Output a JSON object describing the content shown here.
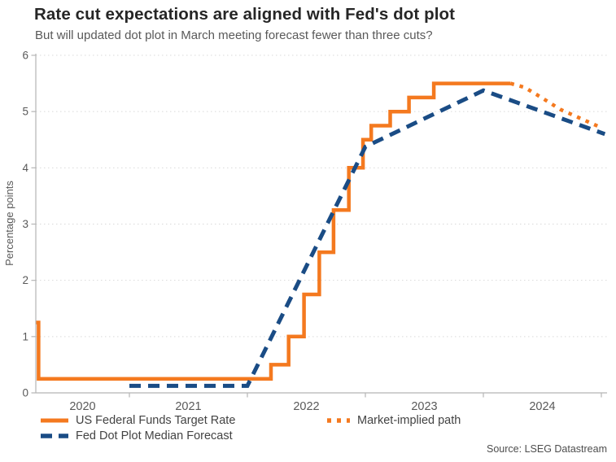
{
  "header": {
    "title": "Rate cut expectations are aligned with Fed's dot plot",
    "subtitle": "But will updated dot plot in March meeting forecast fewer than three cuts?"
  },
  "source_label": "Source: LSEG Datastream",
  "colors": {
    "orange": "#F4791F",
    "blue": "#1A4C85",
    "axis": "#b5b5b5",
    "grid": "#d9d9d9",
    "tick_text": "#595959",
    "legend_text": "#434343"
  },
  "chart_data": {
    "type": "line",
    "title": "Rate cut expectations are aligned with Fed's dot plot",
    "subtitle": "But will updated dot plot in March meeting forecast fewer than three cuts?",
    "xlabel": "",
    "ylabel": "Percentage points",
    "ylim": [
      0,
      6
    ],
    "yticks": [
      0,
      1,
      2,
      3,
      4,
      5,
      6
    ],
    "x_year_labels": [
      "2020",
      "2021",
      "2022",
      "2023",
      "2024"
    ],
    "x_tick_years": [
      2021,
      2022,
      2023,
      2024,
      2025
    ],
    "xlim": [
      2020.2,
      2025.05
    ],
    "grid": "horizontal dotted gridlines at each integer, no vertical grid",
    "legend_position": "bottom-left, two columns",
    "series": [
      {
        "name": "US Federal Funds Target Rate",
        "type": "step-post",
        "style": "solid",
        "color": "#F4791F",
        "points": [
          [
            2020.21,
            1.25
          ],
          [
            2020.23,
            0.25
          ],
          [
            2022.2,
            0.5
          ],
          [
            2022.35,
            1.0
          ],
          [
            2022.48,
            1.75
          ],
          [
            2022.61,
            2.5
          ],
          [
            2022.73,
            3.25
          ],
          [
            2022.86,
            4.0
          ],
          [
            2022.98,
            4.5
          ],
          [
            2023.05,
            4.75
          ],
          [
            2023.21,
            5.0
          ],
          [
            2023.37,
            5.25
          ],
          [
            2023.58,
            5.5
          ],
          [
            2024.23,
            5.5
          ]
        ]
      },
      {
        "name": "Fed Dot Plot Median Forecast",
        "type": "line",
        "style": "dashed",
        "color": "#1A4C85",
        "points": [
          [
            2021.0,
            0.125
          ],
          [
            2022.0,
            0.125
          ],
          [
            2023.0,
            4.375
          ],
          [
            2024.0,
            5.375
          ],
          [
            2025.03,
            4.6
          ]
        ]
      },
      {
        "name": "Market-implied path",
        "type": "line",
        "style": "dotted",
        "color": "#F4791F",
        "points": [
          [
            2024.23,
            5.5
          ],
          [
            2024.35,
            5.43
          ],
          [
            2024.5,
            5.24
          ],
          [
            2024.65,
            5.04
          ],
          [
            2024.8,
            4.9
          ],
          [
            2024.97,
            4.74
          ]
        ]
      }
    ]
  }
}
